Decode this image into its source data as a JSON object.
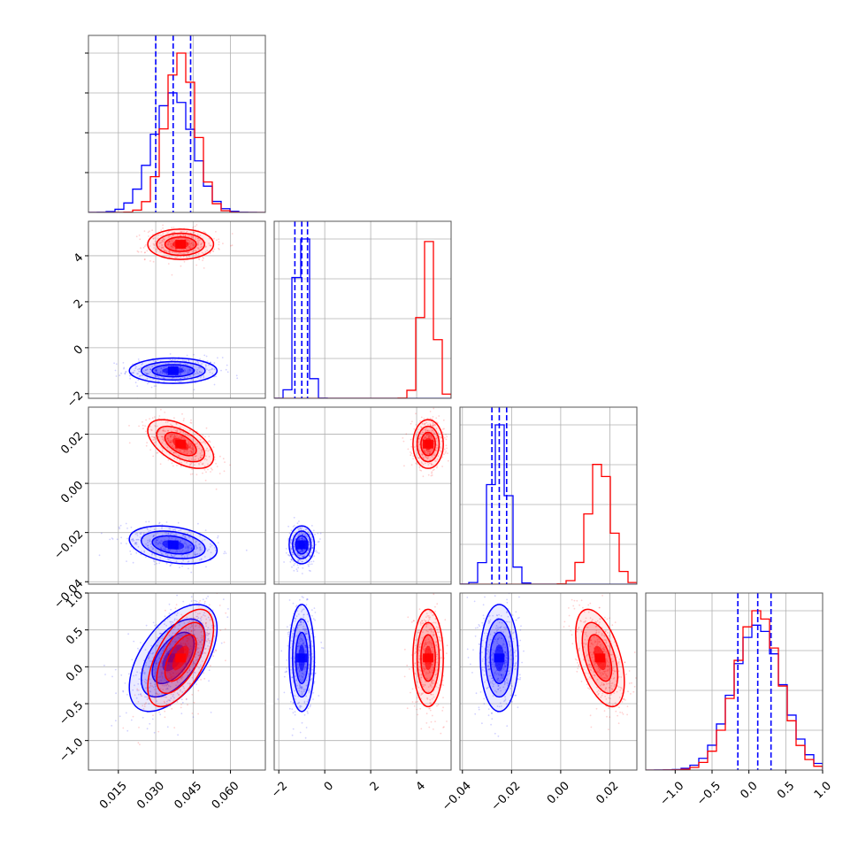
{
  "colors": {
    "blue": "#0000ff",
    "red": "#ff0000",
    "grid": "#b0b0b0",
    "frame": "#555555"
  },
  "chart_data": {
    "type": "corner",
    "grid": true,
    "n_params": 4,
    "ranges": [
      [
        0.003,
        0.074
      ],
      [
        -2.2,
        5.5
      ],
      [
        -0.041,
        0.031
      ],
      [
        -1.4,
        1.0
      ]
    ],
    "ticks": [
      {
        "values": [
          0.015,
          0.03,
          0.045,
          0.06
        ],
        "labels": [
          "0.015",
          "0.030",
          "0.045",
          "0.060"
        ]
      },
      {
        "values": [
          -2,
          0,
          2,
          4
        ],
        "labels": [
          "−2",
          "0",
          "2",
          "4"
        ]
      },
      {
        "values": [
          -0.04,
          -0.02,
          0.0,
          0.02
        ],
        "labels": [
          "−0.04",
          "−0.02",
          "0.00",
          "0.02"
        ]
      },
      {
        "values": [
          -1.0,
          -0.5,
          0.0,
          0.5,
          1.0
        ],
        "labels": [
          "−1.0",
          "−0.5",
          "0.0",
          "0.5",
          "1.0"
        ]
      }
    ],
    "series": [
      {
        "color": "#0000ff",
        "means": [
          0.037,
          -1.0,
          -0.025,
          0.12
        ],
        "sds": [
          0.008,
          0.25,
          0.0035,
          0.33
        ],
        "correlations": [
          [
            0,
            1,
            0.0
          ],
          [
            0,
            2,
            -0.3
          ],
          [
            0,
            3,
            0.55
          ],
          [
            1,
            2,
            0.0
          ],
          [
            1,
            3,
            0.0
          ],
          [
            2,
            3,
            0.0
          ]
        ],
        "quantiles": [
          [
            0.03,
            0.037,
            0.044
          ],
          [
            -1.3,
            -1.0,
            -0.75
          ],
          [
            -0.028,
            -0.025,
            -0.022
          ],
          [
            -0.15,
            0.12,
            0.3
          ]
        ]
      },
      {
        "color": "#ff0000",
        "means": [
          0.04,
          4.5,
          0.016,
          0.12
        ],
        "sds": [
          0.006,
          0.3,
          0.0045,
          0.3
        ],
        "correlations": [
          [
            0,
            1,
            0.0
          ],
          [
            0,
            2,
            -0.55
          ],
          [
            0,
            3,
            0.6
          ],
          [
            1,
            2,
            0.0
          ],
          [
            1,
            3,
            0.0
          ],
          [
            2,
            3,
            -0.5
          ]
        ],
        "quantiles": []
      }
    ]
  }
}
